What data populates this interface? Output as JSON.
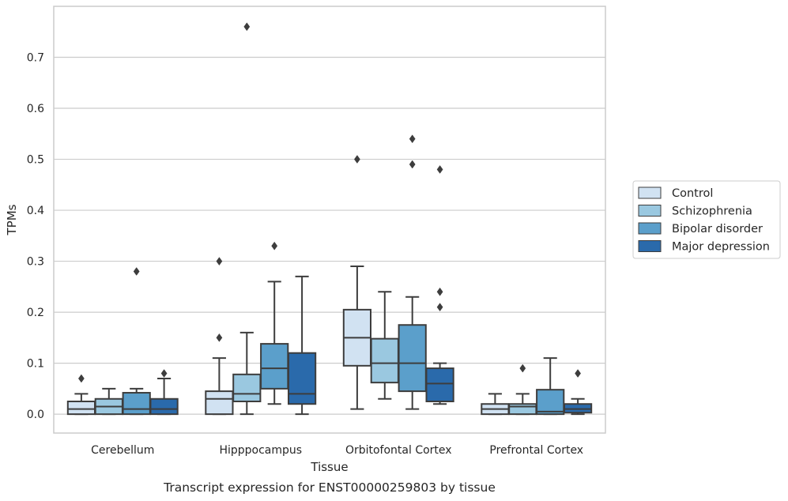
{
  "chart_data": {
    "type": "box",
    "title": "",
    "caption": "Transcript expression for ENST00000259803 by tissue",
    "xlabel": "Tissue",
    "ylabel": "TPMs",
    "ylim": [
      -0.037,
      0.8
    ],
    "yticks": [
      0.0,
      0.1,
      0.2,
      0.3,
      0.4,
      0.5,
      0.6,
      0.7
    ],
    "ytick_labels": [
      "0.0",
      "0.1",
      "0.2",
      "0.3",
      "0.4",
      "0.5",
      "0.6",
      "0.7"
    ],
    "grid": "horizontal",
    "legend_position": "right",
    "categories": [
      "Cerebellum",
      "Hipppocampus",
      "Orbitofontal Cortex",
      "Prefrontal Cortex"
    ],
    "series": [
      {
        "name": "Control",
        "color": "#d1e2f2",
        "boxes": [
          {
            "whislo": 0.0,
            "q1": 0.0,
            "med": 0.01,
            "q3": 0.025,
            "whishi": 0.04,
            "fliers": [
              0.07
            ]
          },
          {
            "whislo": 0.0,
            "q1": 0.0,
            "med": 0.03,
            "q3": 0.045,
            "whishi": 0.11,
            "fliers": [
              0.15,
              0.3
            ]
          },
          {
            "whislo": 0.01,
            "q1": 0.095,
            "med": 0.15,
            "q3": 0.205,
            "whishi": 0.29,
            "fliers": [
              0.5
            ]
          },
          {
            "whislo": 0.0,
            "q1": 0.0,
            "med": 0.01,
            "q3": 0.02,
            "whishi": 0.04,
            "fliers": []
          }
        ]
      },
      {
        "name": "Schizophrenia",
        "color": "#9ac8e0",
        "boxes": [
          {
            "whislo": 0.0,
            "q1": 0.0,
            "med": 0.015,
            "q3": 0.03,
            "whishi": 0.05,
            "fliers": []
          },
          {
            "whislo": 0.0,
            "q1": 0.025,
            "med": 0.04,
            "q3": 0.078,
            "whishi": 0.16,
            "fliers": [
              0.76
            ]
          },
          {
            "whislo": 0.03,
            "q1": 0.062,
            "med": 0.1,
            "q3": 0.148,
            "whishi": 0.24,
            "fliers": []
          },
          {
            "whislo": 0.0,
            "q1": 0.0,
            "med": 0.015,
            "q3": 0.02,
            "whishi": 0.04,
            "fliers": [
              0.09
            ]
          }
        ]
      },
      {
        "name": "Bipolar disorder",
        "color": "#5b9fcb",
        "boxes": [
          {
            "whislo": 0.0,
            "q1": 0.0,
            "med": 0.01,
            "q3": 0.042,
            "whishi": 0.05,
            "fliers": [
              0.28
            ]
          },
          {
            "whislo": 0.02,
            "q1": 0.05,
            "med": 0.09,
            "q3": 0.138,
            "whishi": 0.26,
            "fliers": [
              0.33
            ]
          },
          {
            "whislo": 0.01,
            "q1": 0.045,
            "med": 0.1,
            "q3": 0.175,
            "whishi": 0.23,
            "fliers": [
              0.49,
              0.54
            ]
          },
          {
            "whislo": 0.0,
            "q1": 0.0,
            "med": 0.005,
            "q3": 0.048,
            "whishi": 0.11,
            "fliers": []
          }
        ]
      },
      {
        "name": "Major depression",
        "color": "#2a6aab",
        "boxes": [
          {
            "whislo": 0.0,
            "q1": 0.0,
            "med": 0.01,
            "q3": 0.03,
            "whishi": 0.07,
            "fliers": [
              0.08
            ]
          },
          {
            "whislo": 0.0,
            "q1": 0.02,
            "med": 0.04,
            "q3": 0.12,
            "whishi": 0.27,
            "fliers": []
          },
          {
            "whislo": 0.02,
            "q1": 0.025,
            "med": 0.06,
            "q3": 0.09,
            "whishi": 0.1,
            "fliers": [
              0.21,
              0.24,
              0.48
            ]
          },
          {
            "whislo": 0.0,
            "q1": 0.003,
            "med": 0.01,
            "q3": 0.02,
            "whishi": 0.03,
            "fliers": [
              0.08
            ]
          }
        ]
      }
    ]
  }
}
